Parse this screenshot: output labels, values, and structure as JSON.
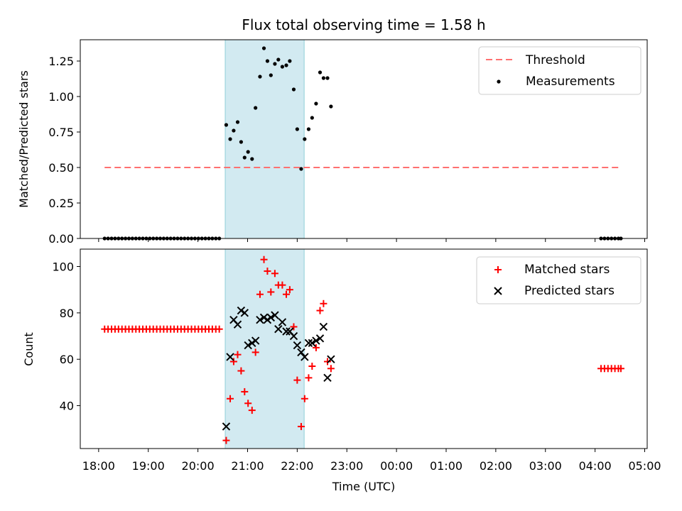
{
  "chart_data": {
    "title": "Flux total observing time = 1.58 h",
    "xlabel": "Time (UTC)",
    "x_range_hours": [
      17.63,
      29.05
    ],
    "x_ticks": [
      {
        "hour": 18,
        "label": "18:00"
      },
      {
        "hour": 19,
        "label": "19:00"
      },
      {
        "hour": 20,
        "label": "20:00"
      },
      {
        "hour": 21,
        "label": "21:00"
      },
      {
        "hour": 22,
        "label": "22:00"
      },
      {
        "hour": 23,
        "label": "23:00"
      },
      {
        "hour": 24,
        "label": "00:00"
      },
      {
        "hour": 25,
        "label": "01:00"
      },
      {
        "hour": 26,
        "label": "02:00"
      },
      {
        "hour": 27,
        "label": "03:00"
      },
      {
        "hour": 28,
        "label": "04:00"
      },
      {
        "hour": 29,
        "label": "05:00"
      }
    ],
    "shaded_span": {
      "start": 20.55,
      "end": 22.14,
      "color": "#add8e6"
    },
    "panels": [
      {
        "type": "scatter",
        "ylabel": "Matched/Predicted stars",
        "ylim": [
          0,
          1.4
        ],
        "yticks": [
          0,
          0.25,
          0.5,
          0.75,
          1.0,
          1.25
        ],
        "ytick_labels": [
          "0.00",
          "0.25",
          "0.50",
          "0.75",
          "1.00",
          "1.25"
        ],
        "legend_position": "upper right",
        "threshold": {
          "name": "Threshold",
          "value": 0.5,
          "x_start": 18.12,
          "x_end": 28.52,
          "color": "#ff7070"
        },
        "series": [
          {
            "name": "Measurements",
            "color": "#000000",
            "marker": "dot",
            "points": [
              [
                18.12,
                0
              ],
              [
                18.19,
                0
              ],
              [
                18.26,
                0
              ],
              [
                18.33,
                0
              ],
              [
                18.4,
                0
              ],
              [
                18.47,
                0
              ],
              [
                18.54,
                0
              ],
              [
                18.61,
                0
              ],
              [
                18.68,
                0
              ],
              [
                18.75,
                0
              ],
              [
                18.82,
                0
              ],
              [
                18.89,
                0
              ],
              [
                18.96,
                0
              ],
              [
                19.03,
                0
              ],
              [
                19.1,
                0
              ],
              [
                19.17,
                0
              ],
              [
                19.24,
                0
              ],
              [
                19.31,
                0
              ],
              [
                19.38,
                0
              ],
              [
                19.45,
                0
              ],
              [
                19.52,
                0
              ],
              [
                19.59,
                0
              ],
              [
                19.66,
                0
              ],
              [
                19.73,
                0
              ],
              [
                19.8,
                0
              ],
              [
                19.87,
                0
              ],
              [
                19.94,
                0
              ],
              [
                20.01,
                0
              ],
              [
                20.08,
                0
              ],
              [
                20.15,
                0
              ],
              [
                20.22,
                0
              ],
              [
                20.29,
                0
              ],
              [
                20.36,
                0
              ],
              [
                20.43,
                0
              ],
              [
                20.57,
                0.8
              ],
              [
                20.65,
                0.7
              ],
              [
                20.72,
                0.76
              ],
              [
                20.8,
                0.82
              ],
              [
                20.87,
                0.68
              ],
              [
                20.94,
                0.57
              ],
              [
                21.01,
                0.61
              ],
              [
                21.09,
                0.56
              ],
              [
                21.16,
                0.92
              ],
              [
                21.25,
                1.14
              ],
              [
                21.33,
                1.34
              ],
              [
                21.4,
                1.25
              ],
              [
                21.47,
                1.15
              ],
              [
                21.55,
                1.23
              ],
              [
                21.62,
                1.26
              ],
              [
                21.7,
                1.21
              ],
              [
                21.78,
                1.22
              ],
              [
                21.85,
                1.25
              ],
              [
                21.93,
                1.05
              ],
              [
                22.0,
                0.77
              ],
              [
                22.08,
                0.49
              ],
              [
                22.15,
                0.7
              ],
              [
                22.23,
                0.77
              ],
              [
                22.3,
                0.85
              ],
              [
                22.38,
                0.95
              ],
              [
                22.46,
                1.17
              ],
              [
                22.53,
                1.13
              ],
              [
                22.61,
                1.13
              ],
              [
                22.68,
                0.93
              ],
              [
                28.12,
                0
              ],
              [
                28.19,
                0
              ],
              [
                28.26,
                0
              ],
              [
                28.33,
                0
              ],
              [
                28.4,
                0
              ],
              [
                28.47,
                0
              ],
              [
                28.52,
                0
              ]
            ]
          }
        ]
      },
      {
        "type": "scatter",
        "ylabel": "Count",
        "ylim": [
          21.5,
          107.5
        ],
        "yticks": [
          40,
          60,
          80,
          100
        ],
        "ytick_labels": [
          "40",
          "60",
          "80",
          "100"
        ],
        "legend_position": "upper right",
        "series": [
          {
            "name": "Matched stars",
            "color": "#ff0000",
            "marker": "plus",
            "points": [
              [
                18.12,
                73
              ],
              [
                18.19,
                73
              ],
              [
                18.26,
                73
              ],
              [
                18.33,
                73
              ],
              [
                18.4,
                73
              ],
              [
                18.47,
                73
              ],
              [
                18.54,
                73
              ],
              [
                18.61,
                73
              ],
              [
                18.68,
                73
              ],
              [
                18.75,
                73
              ],
              [
                18.82,
                73
              ],
              [
                18.89,
                73
              ],
              [
                18.96,
                73
              ],
              [
                19.03,
                73
              ],
              [
                19.1,
                73
              ],
              [
                19.17,
                73
              ],
              [
                19.24,
                73
              ],
              [
                19.31,
                73
              ],
              [
                19.38,
                73
              ],
              [
                19.45,
                73
              ],
              [
                19.52,
                73
              ],
              [
                19.59,
                73
              ],
              [
                19.66,
                73
              ],
              [
                19.73,
                73
              ],
              [
                19.8,
                73
              ],
              [
                19.87,
                73
              ],
              [
                19.94,
                73
              ],
              [
                20.01,
                73
              ],
              [
                20.08,
                73
              ],
              [
                20.15,
                73
              ],
              [
                20.22,
                73
              ],
              [
                20.29,
                73
              ],
              [
                20.36,
                73
              ],
              [
                20.43,
                73
              ],
              [
                20.57,
                25
              ],
              [
                20.65,
                43
              ],
              [
                20.72,
                59
              ],
              [
                20.8,
                62
              ],
              [
                20.87,
                55
              ],
              [
                20.94,
                46
              ],
              [
                21.01,
                41
              ],
              [
                21.09,
                38
              ],
              [
                21.16,
                63
              ],
              [
                21.25,
                88
              ],
              [
                21.33,
                103
              ],
              [
                21.4,
                98
              ],
              [
                21.47,
                89
              ],
              [
                21.55,
                97
              ],
              [
                21.62,
                92
              ],
              [
                21.7,
                92
              ],
              [
                21.78,
                88
              ],
              [
                21.85,
                90
              ],
              [
                21.93,
                74
              ],
              [
                22.0,
                51
              ],
              [
                22.08,
                31
              ],
              [
                22.15,
                43
              ],
              [
                22.23,
                52
              ],
              [
                22.3,
                57
              ],
              [
                22.38,
                65
              ],
              [
                22.46,
                81
              ],
              [
                22.53,
                84
              ],
              [
                22.61,
                59
              ],
              [
                22.68,
                56
              ],
              [
                28.12,
                56
              ],
              [
                28.19,
                56
              ],
              [
                28.26,
                56
              ],
              [
                28.33,
                56
              ],
              [
                28.4,
                56
              ],
              [
                28.47,
                56
              ],
              [
                28.52,
                56
              ]
            ]
          },
          {
            "name": "Predicted stars",
            "color": "#000000",
            "marker": "x",
            "points": [
              [
                20.57,
                31
              ],
              [
                20.65,
                61
              ],
              [
                20.72,
                77
              ],
              [
                20.8,
                75
              ],
              [
                20.87,
                81
              ],
              [
                20.94,
                80
              ],
              [
                21.01,
                66
              ],
              [
                21.09,
                67
              ],
              [
                21.16,
                68
              ],
              [
                21.25,
                77
              ],
              [
                21.33,
                78
              ],
              [
                21.4,
                77
              ],
              [
                21.47,
                78
              ],
              [
                21.55,
                79
              ],
              [
                21.62,
                73
              ],
              [
                21.7,
                76
              ],
              [
                21.78,
                72
              ],
              [
                21.85,
                72
              ],
              [
                21.93,
                70
              ],
              [
                22.0,
                66
              ],
              [
                22.08,
                63
              ],
              [
                22.15,
                61
              ],
              [
                22.23,
                67
              ],
              [
                22.3,
                67
              ],
              [
                22.38,
                68
              ],
              [
                22.46,
                69
              ],
              [
                22.53,
                74
              ],
              [
                22.61,
                52
              ],
              [
                22.68,
                60
              ]
            ]
          }
        ]
      }
    ]
  }
}
